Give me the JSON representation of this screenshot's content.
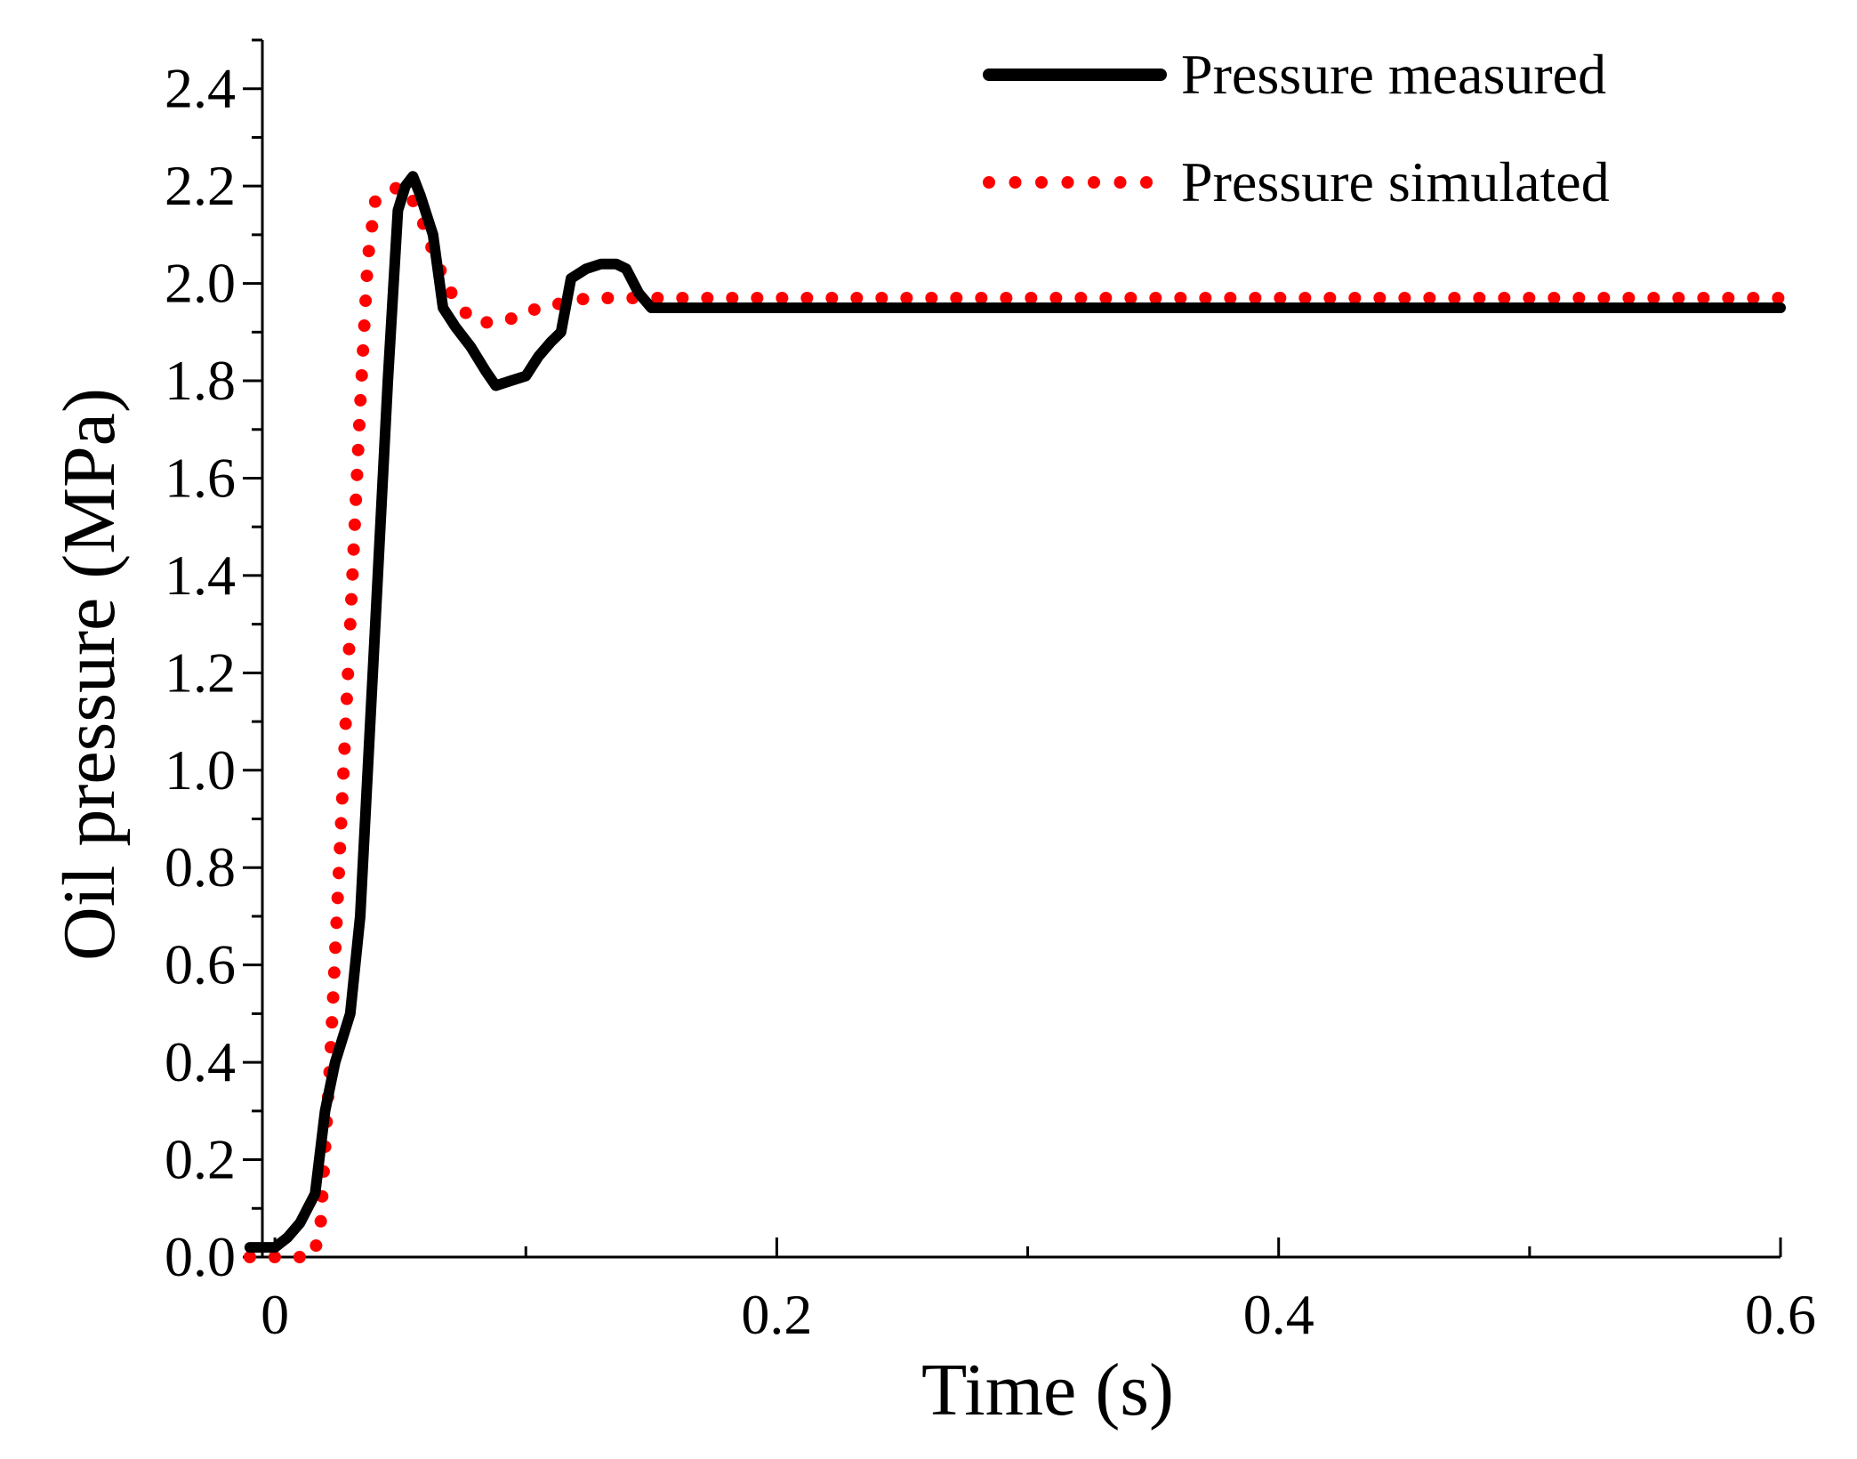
{
  "chart_data": {
    "type": "line",
    "title": "",
    "xlabel": "Time (s)",
    "ylabel": "Oil pressure (MPa)",
    "xlim": [
      -0.005,
      0.6
    ],
    "ylim": [
      0,
      2.5
    ],
    "x_ticks": [
      0,
      0.2,
      0.4,
      0.6
    ],
    "x_tick_labels": [
      "0",
      "0.2",
      "0.4",
      "0.6"
    ],
    "x_minor_step": 0.1,
    "y_ticks": [
      0,
      0.2,
      0.4,
      0.6,
      0.8,
      1.0,
      1.2,
      1.4,
      1.6,
      1.8,
      2.0,
      2.2,
      2.4
    ],
    "y_tick_labels": [
      "0.0",
      "0.2",
      "0.4",
      "0.6",
      "0.8",
      "1.0",
      "1.2",
      "1.4",
      "1.6",
      "1.8",
      "2.0",
      "2.2",
      "2.4"
    ],
    "y_minor_step": 0.1,
    "grid": false,
    "legend_position": "top-right",
    "series": [
      {
        "name": "Pressure measured",
        "color": "#000000",
        "style": "solid",
        "x": [
          -0.01,
          0.0,
          0.005,
          0.01,
          0.016,
          0.02,
          0.024,
          0.03,
          0.034,
          0.037,
          0.04,
          0.045,
          0.049,
          0.052,
          0.055,
          0.058,
          0.063,
          0.067,
          0.072,
          0.078,
          0.084,
          0.088,
          0.094,
          0.1,
          0.105,
          0.11,
          0.114,
          0.118,
          0.124,
          0.13,
          0.136,
          0.14,
          0.145,
          0.15,
          0.2,
          0.3,
          0.4,
          0.5,
          0.6
        ],
        "y": [
          0.02,
          0.02,
          0.04,
          0.07,
          0.13,
          0.3,
          0.4,
          0.5,
          0.7,
          1.0,
          1.3,
          1.8,
          2.15,
          2.2,
          2.22,
          2.18,
          2.1,
          1.95,
          1.91,
          1.87,
          1.82,
          1.79,
          1.8,
          1.81,
          1.85,
          1.88,
          1.9,
          2.01,
          2.03,
          2.04,
          2.04,
          2.03,
          1.98,
          1.95,
          1.95,
          1.95,
          1.95,
          1.95,
          1.95
        ]
      },
      {
        "name": "Pressure simulated",
        "color": "#ff0000",
        "style": "dotted",
        "x": [
          -0.01,
          0.0,
          0.01,
          0.015,
          0.018,
          0.022,
          0.026,
          0.03,
          0.034,
          0.037,
          0.04,
          0.046,
          0.05,
          0.054,
          0.058,
          0.062,
          0.068,
          0.074,
          0.08,
          0.088,
          0.096,
          0.105,
          0.115,
          0.125,
          0.135,
          0.145,
          0.16,
          0.2,
          0.3,
          0.4,
          0.5,
          0.6
        ],
        "y": [
          0.0,
          0.0,
          0.0,
          0.0,
          0.05,
          0.4,
          0.85,
          1.3,
          1.75,
          2.05,
          2.17,
          2.19,
          2.2,
          2.18,
          2.14,
          2.08,
          2.0,
          1.95,
          1.92,
          1.92,
          1.93,
          1.95,
          1.96,
          1.97,
          1.97,
          1.97,
          1.97,
          1.97,
          1.97,
          1.97,
          1.97,
          1.97
        ]
      }
    ]
  }
}
